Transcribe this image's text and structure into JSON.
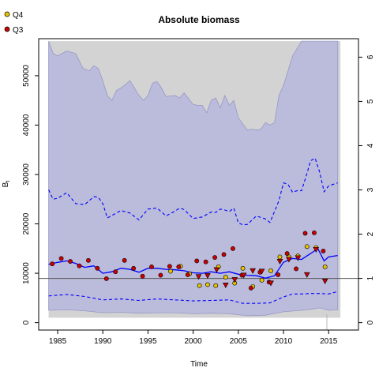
{
  "chart_data": {
    "type": "scatter",
    "title": "Absolute biomass",
    "xlabel": "Time",
    "ylabel": "B_t",
    "xlim": [
      1982.9,
      2018.3
    ],
    "ylim": [
      -1500,
      57500
    ],
    "x_ticks": [
      1985,
      1990,
      1995,
      2000,
      2005,
      2010,
      2015
    ],
    "y_ticks": [
      0,
      10000,
      20000,
      30000,
      40000,
      50000
    ],
    "y2_ticks": [
      0,
      1,
      2,
      3,
      4,
      5,
      6
    ],
    "y2_per_unit": 8960,
    "bmsy_reference": 8960,
    "grid": false,
    "legend_position": "top-left",
    "legend": [
      {
        "name": "Q4",
        "color": "#e8c400"
      },
      {
        "name": "Q3",
        "color": "#cc0000"
      }
    ],
    "colors": {
      "outer_band": "#d3d3d3",
      "inner_band": "#bbbbdb",
      "inner_band_edge": "#9898c8",
      "estimate_line": "#0000ff",
      "reference_line": "#555555",
      "q4_point": "#e8c400",
      "q3_point": "#cc0000"
    },
    "outer_band": {
      "x": [
        1984,
        2016.3
      ],
      "lower": 1000,
      "upper": 57000
    },
    "inner_band_upper": {
      "x": [
        1984,
        1984.5,
        1985,
        1986,
        1987,
        1987.8,
        1988.5,
        1989,
        1989.5,
        1990,
        1990.5,
        1991,
        1991.5,
        1992,
        1993,
        1993.5,
        1994,
        1994.5,
        1995,
        1995.5,
        1996,
        1996.5,
        1997,
        1998,
        1998.5,
        1999,
        2000,
        2000.5,
        2001,
        2001.5,
        2002,
        2002.5,
        2003,
        2003.5,
        2004,
        2004.5,
        2005,
        2006,
        2006.5,
        2007,
        2007.5,
        2008,
        2008.5,
        2009,
        2009.5,
        2010,
        2011,
        2012,
        2013,
        2014,
        2015,
        2016
      ],
      "values": [
        57000,
        54500,
        54000,
        55000,
        54500,
        51500,
        51000,
        52000,
        51500,
        49000,
        46000,
        45000,
        47000,
        47500,
        49000,
        47500,
        46000,
        45000,
        46000,
        48500,
        48800,
        47500,
        45800,
        46000,
        45500,
        46500,
        44200,
        44000,
        44000,
        42500,
        45000,
        45500,
        43500,
        46000,
        44000,
        45000,
        41500,
        39000,
        39200,
        39000,
        39200,
        40500,
        40000,
        40500,
        46000,
        48000,
        54000,
        57000,
        57000,
        57000,
        57000,
        57000
      ]
    },
    "inner_band_lower": {
      "x": [
        1984,
        1986,
        1988,
        1990,
        1992,
        1994,
        1996,
        1998,
        2000,
        2002,
        2004,
        2006,
        2008,
        2010,
        2012,
        2013,
        2014,
        2015,
        2016
      ],
      "values": [
        2500,
        2600,
        2400,
        2000,
        2100,
        1900,
        2000,
        2000,
        1800,
        1900,
        1800,
        1400,
        1500,
        2200,
        2500,
        2700,
        3000,
        2500,
        2600
      ]
    },
    "estimate": {
      "x": [
        1984,
        1985,
        1986,
        1987,
        1988,
        1989,
        1990,
        1991,
        1992,
        1993,
        1994,
        1995,
        1996,
        1997,
        1998,
        1999,
        2000,
        2001,
        2002,
        2003,
        2004,
        2005,
        2006,
        2007,
        2008,
        2009,
        2010,
        2011,
        2012,
        2013,
        2013.8,
        2014.5,
        2015,
        2016
      ],
      "values": [
        11800,
        12200,
        12500,
        12000,
        11200,
        11500,
        10000,
        10300,
        11000,
        10800,
        10200,
        11000,
        11000,
        10800,
        10700,
        10500,
        10100,
        10000,
        10300,
        10000,
        10300,
        9800,
        9600,
        9500,
        9000,
        9500,
        12200,
        13000,
        12800,
        14000,
        15000,
        12500,
        13300,
        13600
      ]
    },
    "ci_upper": {
      "x": [
        1984,
        1984.5,
        1985,
        1986,
        1987,
        1988,
        1989,
        1989.5,
        1990,
        1990.5,
        1991,
        1992,
        1993,
        1994,
        1995,
        1996,
        1997,
        1998,
        1998.5,
        1999,
        2000,
        2001,
        2002,
        2002.5,
        2003,
        2003.5,
        2004,
        2004.5,
        2005,
        2005.5,
        2006,
        2007,
        2008,
        2008.5,
        2009,
        2009.5,
        2010,
        2010.5,
        2011,
        2011.5,
        2012,
        2012.5,
        2013,
        2013.5,
        2014,
        2014.5,
        2015,
        2016
      ],
      "values": [
        26900,
        25000,
        25200,
        26300,
        24100,
        23900,
        25500,
        25400,
        24100,
        21200,
        21700,
        22700,
        22200,
        20800,
        23000,
        23200,
        21600,
        22600,
        23200,
        22900,
        21100,
        21400,
        22400,
        22300,
        23000,
        22800,
        22500,
        23200,
        20200,
        19800,
        19900,
        21600,
        21000,
        20300,
        22500,
        24700,
        28300,
        28000,
        26400,
        26700,
        26700,
        29600,
        32800,
        33300,
        30500,
        26500,
        27700,
        28300
      ]
    },
    "ci_lower": {
      "x": [
        1984,
        1986,
        1988,
        1990,
        1992,
        1994,
        1996,
        1998,
        2000,
        2002,
        2004,
        2005.5,
        2007,
        2008.5,
        2010,
        2011,
        2012,
        2013,
        2014,
        2015,
        2016
      ],
      "values": [
        5400,
        5700,
        5300,
        4600,
        4800,
        4500,
        4800,
        4600,
        4400,
        4500,
        4600,
        3900,
        3900,
        4000,
        5200,
        5800,
        5800,
        5900,
        5900,
        5800,
        6300
      ]
    },
    "series": [
      {
        "name": "Q4",
        "x": [
          1997.5,
          1998.6,
          1999.6,
          2000.7,
          2001.6,
          2002.5,
          2002.8,
          2003.6,
          2004.6,
          2005.5,
          2006.6,
          2007.6,
          2008.6,
          2009.6,
          2010.6,
          2011.6,
          2012.6,
          2013.6,
          2014.6
        ],
        "values": [
          10400,
          11400,
          9900,
          7500,
          7700,
          7500,
          11300,
          9200,
          8000,
          11000,
          7300,
          8600,
          10500,
          13300,
          13300,
          13500,
          15400,
          15200,
          11300
        ]
      },
      {
        "name": "Q3",
        "x": [
          1984.4,
          1985.4,
          1986.4,
          1987.4,
          1988.4,
          1989.4,
          1990.4,
          1991.4,
          1992.4,
          1993.4,
          1994.4,
          1995.4,
          1996.4,
          1997.4,
          1998.4,
          1999.4,
          2000.4,
          2001.4,
          2002.4,
          2003.4,
          2004.4,
          2005.4,
          2006.4,
          2007.4,
          2008.4,
          2009.4,
          2010.4,
          2011.4,
          2012.4,
          2013.4,
          2014.4
        ],
        "values": [
          11900,
          13000,
          12400,
          11500,
          12600,
          11000,
          8900,
          10300,
          12600,
          11000,
          9400,
          11300,
          9600,
          11400,
          11300,
          9700,
          12500,
          12300,
          13200,
          13800,
          15000,
          9600,
          7000,
          10200,
          8200,
          9700,
          14000,
          10900,
          18100,
          18200,
          14500
        ]
      },
      {
        "name": "",
        "x": [
          2000.6,
          2001.6,
          2002.6,
          2003.6,
          2004.6,
          2005.6,
          2006.6,
          2007.6,
          2008.6,
          2009.6,
          2010.6,
          2011.6,
          2012.6,
          2013.6,
          2014.6
        ],
        "values": [
          9300,
          9500,
          10700,
          7600,
          8700,
          9600,
          10500,
          10400,
          8000,
          12400,
          12800,
          13100,
          9700,
          14800,
          8400
        ]
      }
    ]
  }
}
